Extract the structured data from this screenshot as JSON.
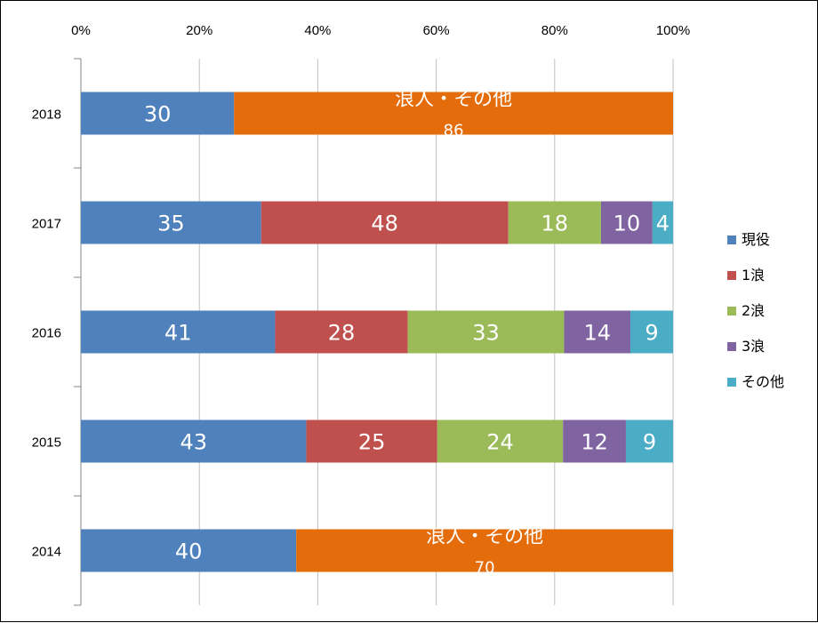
{
  "chart_data": {
    "type": "bar",
    "orientation": "horizontal",
    "stacking": "percent",
    "categories": [
      "2018",
      "2017",
      "2016",
      "2015",
      "2014"
    ],
    "x_ticks": [
      "0%",
      "20%",
      "40%",
      "60%",
      "80%",
      "100%"
    ],
    "xlim": [
      0,
      100
    ],
    "legend_position": "right",
    "gridlines": true,
    "series": [
      {
        "name": "現役",
        "color": "#4F81BD",
        "values": [
          30,
          35,
          41,
          43,
          40
        ]
      },
      {
        "name": "1浪",
        "color": "#C0504D",
        "values": [
          null,
          48,
          28,
          25,
          null
        ]
      },
      {
        "name": "2浪",
        "color": "#9BBB59",
        "values": [
          null,
          18,
          33,
          24,
          null
        ]
      },
      {
        "name": "3浪",
        "color": "#8064A2",
        "values": [
          null,
          10,
          14,
          12,
          null
        ]
      },
      {
        "name": "その他",
        "color": "#4BACC6",
        "values": [
          null,
          4,
          9,
          9,
          null
        ]
      },
      {
        "name": "浪人・その他",
        "color": "#E46C0A",
        "in_legend": false,
        "values": [
          86,
          null,
          null,
          null,
          70
        ]
      }
    ]
  }
}
